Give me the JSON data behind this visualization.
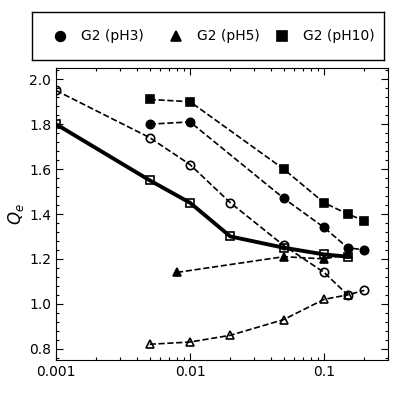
{
  "ylabel": "Q_e",
  "xlim": [
    0.001,
    0.3
  ],
  "ylim": [
    0.75,
    2.05
  ],
  "series": {
    "open_circle": {
      "x": [
        0.001,
        0.005,
        0.01,
        0.02,
        0.05,
        0.1,
        0.15,
        0.2
      ],
      "y": [
        1.95,
        1.74,
        1.62,
        1.45,
        1.26,
        1.14,
        1.04,
        1.06
      ],
      "marker": "o",
      "fillstyle": "none",
      "color": "black",
      "linestyle": "--",
      "linewidth": 1.2,
      "markersize": 6,
      "label": null,
      "zorder": 3
    },
    "open_square": {
      "x": [
        0.001,
        0.005,
        0.01,
        0.02,
        0.05,
        0.1,
        0.15
      ],
      "y": [
        1.8,
        1.55,
        1.45,
        1.3,
        1.25,
        1.22,
        1.21
      ],
      "marker": "s",
      "fillstyle": "none",
      "color": "black",
      "linestyle": "-",
      "linewidth": 2.8,
      "markersize": 6,
      "label": null,
      "zorder": 3
    },
    "open_triangle": {
      "x": [
        0.005,
        0.01,
        0.02,
        0.05,
        0.1,
        0.15
      ],
      "y": [
        0.82,
        0.83,
        0.86,
        0.93,
        1.02,
        1.04
      ],
      "marker": "^",
      "fillstyle": "none",
      "color": "black",
      "linestyle": "--",
      "linewidth": 1.2,
      "markersize": 6,
      "label": null,
      "zorder": 3
    },
    "filled_circle": {
      "x": [
        0.005,
        0.01,
        0.05,
        0.1,
        0.15,
        0.2
      ],
      "y": [
        1.8,
        1.81,
        1.47,
        1.34,
        1.25,
        1.24
      ],
      "marker": "o",
      "fillstyle": "full",
      "color": "black",
      "linestyle": "--",
      "linewidth": 1.2,
      "markersize": 6,
      "label": "G2 (pH3)",
      "zorder": 4
    },
    "filled_triangle": {
      "x": [
        0.008,
        0.05,
        0.1,
        0.15
      ],
      "y": [
        1.14,
        1.21,
        1.2,
        1.22
      ],
      "marker": "^",
      "fillstyle": "full",
      "color": "black",
      "linestyle": "--",
      "linewidth": 1.2,
      "markersize": 6,
      "label": "G2 (pH5)",
      "zorder": 4
    },
    "filled_square": {
      "x": [
        0.005,
        0.01,
        0.05,
        0.1,
        0.15,
        0.2
      ],
      "y": [
        1.91,
        1.9,
        1.6,
        1.45,
        1.4,
        1.37
      ],
      "marker": "s",
      "fillstyle": "full",
      "color": "black",
      "linestyle": "--",
      "linewidth": 1.2,
      "markersize": 6,
      "label": "G2 (pH10)",
      "zorder": 4
    }
  },
  "legend_order": [
    "filled_circle",
    "filled_triangle",
    "filled_square"
  ],
  "background_color": "white",
  "yticks": [
    0.8,
    1.0,
    1.2,
    1.4,
    1.6,
    1.8,
    2.0
  ],
  "xticks": [
    0.001,
    0.01,
    0.1
  ],
  "xticklabels": [
    "0.001",
    "0.01",
    "0.1"
  ]
}
